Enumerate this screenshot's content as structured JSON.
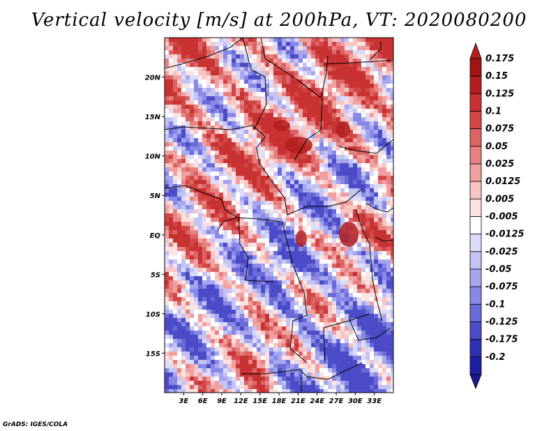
{
  "title": "Vertical velocity [m/s] at 200hPa, VT: 2020080200",
  "credit": "GrADS: IGES/COLA",
  "map": {
    "lon_range": [
      0,
      36
    ],
    "lat_range": [
      -20,
      25
    ],
    "lat_ticks": [
      {
        "value": 20,
        "label": "20N"
      },
      {
        "value": 15,
        "label": "15N"
      },
      {
        "value": 10,
        "label": "10N"
      },
      {
        "value": 5,
        "label": "5N"
      },
      {
        "value": 0,
        "label": "EQ"
      },
      {
        "value": -5,
        "label": "5S"
      },
      {
        "value": -10,
        "label": "10S"
      },
      {
        "value": -15,
        "label": "15S"
      }
    ],
    "lon_ticks": [
      {
        "value": 3,
        "label": "3E"
      },
      {
        "value": 6,
        "label": "6E"
      },
      {
        "value": 9,
        "label": "9E"
      },
      {
        "value": 12,
        "label": "12E"
      },
      {
        "value": 15,
        "label": "15E"
      },
      {
        "value": 18,
        "label": "18E"
      },
      {
        "value": 21,
        "label": "21E"
      },
      {
        "value": 24,
        "label": "24E"
      },
      {
        "value": 27,
        "label": "27E"
      },
      {
        "value": 30,
        "label": "30E"
      },
      {
        "value": 33,
        "label": "33E"
      }
    ]
  },
  "colorbar": {
    "levels": [
      {
        "label": "0.175",
        "color": "#a01414"
      },
      {
        "label": "0.15",
        "color": "#b41e1e"
      },
      {
        "label": "0.125",
        "color": "#c83232"
      },
      {
        "label": "0.1",
        "color": "#d24646"
      },
      {
        "label": "0.075",
        "color": "#dc6464"
      },
      {
        "label": "0.05",
        "color": "#e68282"
      },
      {
        "label": "0.025",
        "color": "#f0a0a0"
      },
      {
        "label": "0.0125",
        "color": "#f8c4c4"
      },
      {
        "label": "0.005",
        "color": "#fde2e2"
      },
      {
        "label": "-0.005",
        "color": "#ffffff"
      },
      {
        "label": "-0.0125",
        "color": "#dcdcfa"
      },
      {
        "label": "-0.025",
        "color": "#c4c4f4"
      },
      {
        "label": "-0.05",
        "color": "#a6a6ee"
      },
      {
        "label": "-0.075",
        "color": "#8888e6"
      },
      {
        "label": "-0.1",
        "color": "#6a6ad8"
      },
      {
        "label": "-0.125",
        "color": "#4c4cc8"
      },
      {
        "label": "-0.175",
        "color": "#3030b4"
      },
      {
        "label": "-0.2",
        "color": "#1e1ea0"
      }
    ],
    "top_arrow_color": "#b41e1e",
    "bottom_arrow_color": "#1a1a90"
  }
}
